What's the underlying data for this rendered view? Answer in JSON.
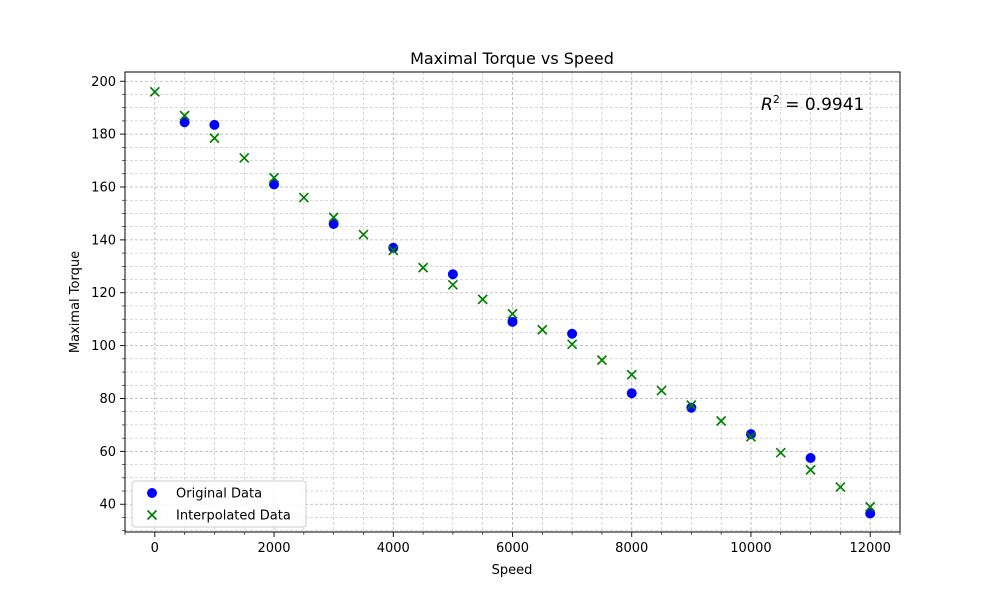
{
  "chart_data": {
    "type": "scatter",
    "title": "Maximal Torque vs Speed",
    "xlabel": "Speed",
    "ylabel": "Maximal Torque",
    "annotation": {
      "base": "R",
      "sup": "2",
      "value": " = 0.9941"
    },
    "xlim": [
      -500,
      12500
    ],
    "ylim": [
      29.5,
      203.5
    ],
    "xticks": [
      0,
      2000,
      4000,
      6000,
      8000,
      10000,
      12000
    ],
    "xtick_labels": [
      "0",
      "2000",
      "4000",
      "6000",
      "8000",
      "10000",
      "12000"
    ],
    "yticks": [
      40,
      60,
      80,
      100,
      120,
      140,
      160,
      180,
      200
    ],
    "ytick_labels": [
      "40",
      "60",
      "80",
      "100",
      "120",
      "140",
      "160",
      "180",
      "200"
    ],
    "x_minor_step": 500,
    "y_minor_step": 5,
    "grid": true,
    "legend_position": "lower-left",
    "series": [
      {
        "name": "Original Data",
        "marker": "circle",
        "color": "#0000ff",
        "x": [
          500,
          1000,
          2000,
          3000,
          4000,
          5000,
          6000,
          7000,
          8000,
          9000,
          10000,
          11000,
          12000
        ],
        "y": [
          184.5,
          183.5,
          161,
          146,
          137,
          127,
          109,
          104.5,
          82,
          76.5,
          66.5,
          57.5,
          36.5
        ]
      },
      {
        "name": "Interpolated Data",
        "marker": "x",
        "color": "#008000",
        "x": [
          0,
          500,
          1000,
          1500,
          2000,
          2500,
          3000,
          3500,
          4000,
          4500,
          5000,
          5500,
          6000,
          6500,
          7000,
          7500,
          8000,
          8500,
          9000,
          9500,
          10000,
          10500,
          11000,
          11500,
          12000
        ],
        "y": [
          196,
          187,
          178.5,
          171,
          163.5,
          156,
          148.5,
          142,
          136,
          129.5,
          123,
          117.5,
          112,
          106,
          100.5,
          94.5,
          89,
          83,
          77.5,
          71.5,
          65.5,
          59.5,
          53,
          46.5,
          39
        ]
      }
    ]
  }
}
